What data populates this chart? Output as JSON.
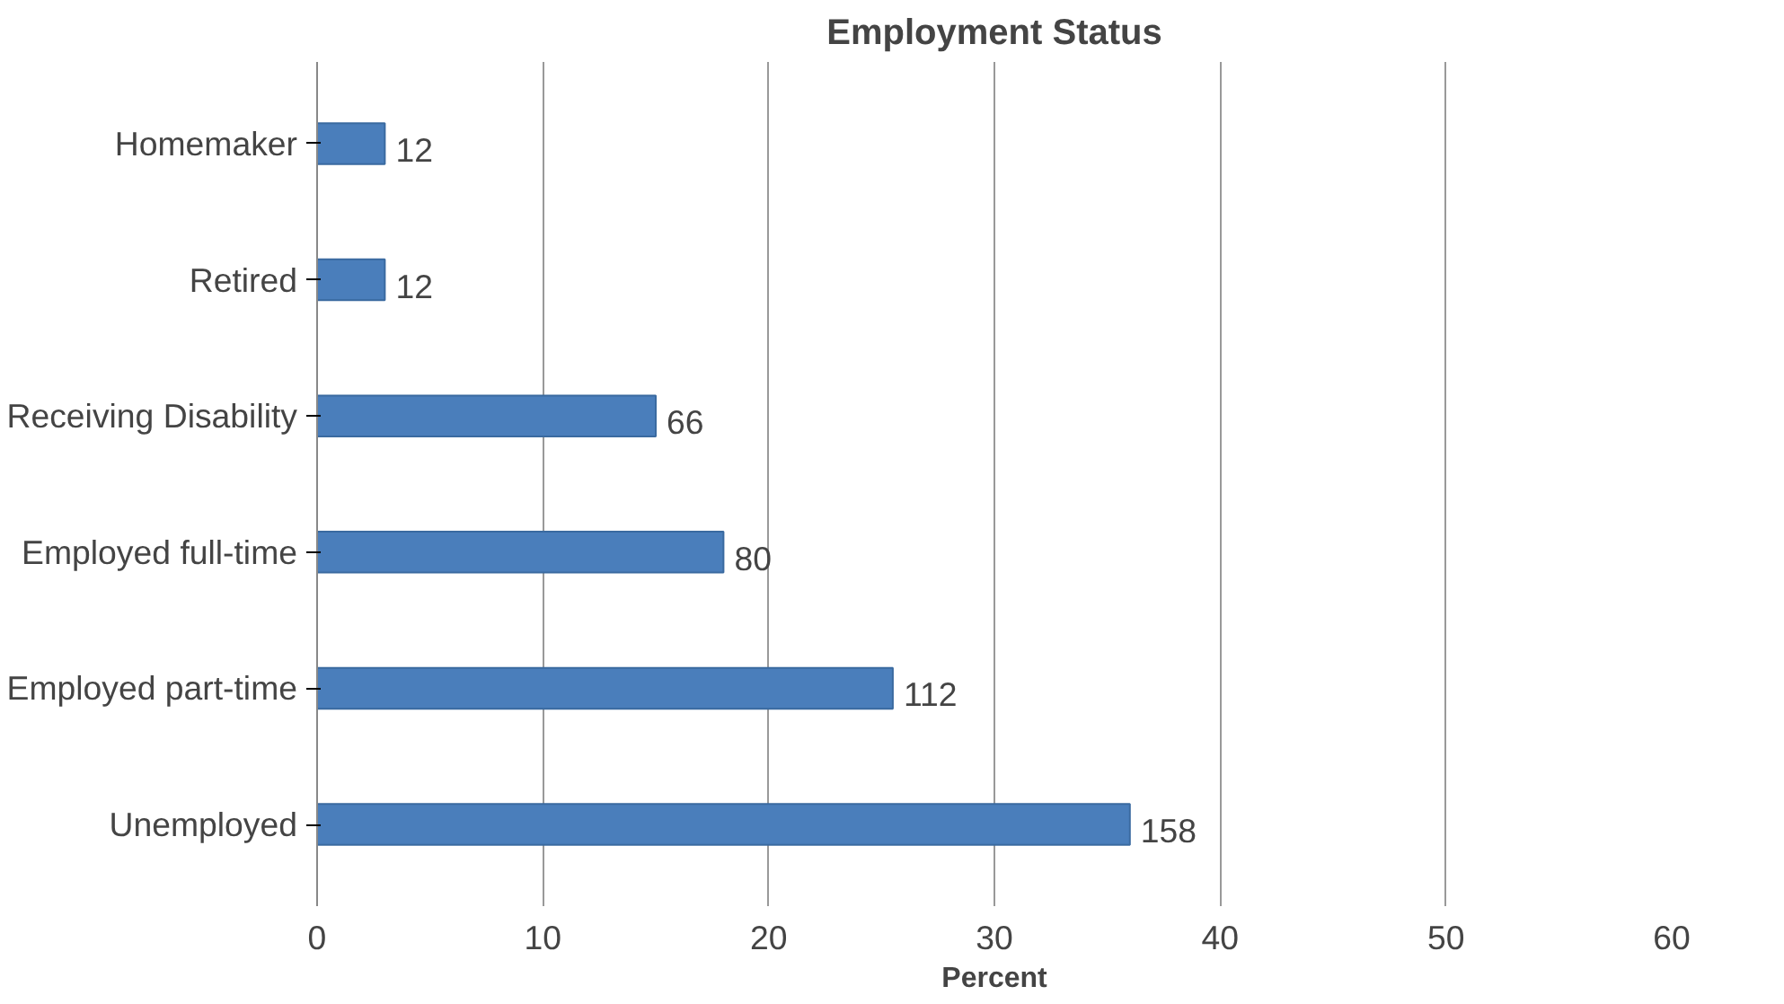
{
  "chart_data": {
    "type": "bar",
    "orientation": "horizontal",
    "title": "Employment Status",
    "xlabel": "Percent",
    "categories": [
      "Homemaker",
      "Retired",
      "Receiving Disability",
      "Employed full-time",
      "Employed part-time",
      "Unemployed"
    ],
    "values": [
      3,
      3,
      15,
      18,
      25.5,
      36
    ],
    "annotations": [
      {
        "text": "12",
        "x": 3,
        "y": "Homemaker"
      },
      {
        "text": "12",
        "x": 3,
        "y": "Retired"
      },
      {
        "text": "66",
        "x": 15,
        "y": "Receiving Disability"
      },
      {
        "text": "80",
        "x": 18,
        "y": "Employed full-time"
      },
      {
        "text": "112",
        "x": 25.5,
        "y": "Employed part-time"
      },
      {
        "text": "158",
        "x": 36,
        "y": "Unemployed"
      }
    ],
    "color": "#4a7ebb",
    "xlim": [
      0,
      60
    ],
    "xticks": [
      0,
      10,
      20,
      30,
      40,
      50,
      60
    ],
    "grid": "x"
  }
}
